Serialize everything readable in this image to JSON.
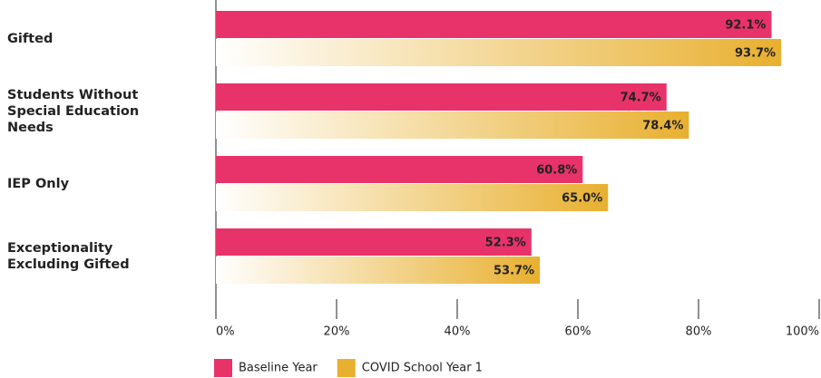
{
  "chart_data": {
    "type": "bar",
    "orientation": "horizontal",
    "categories": [
      "Gifted",
      "Students Without Special Education Needs",
      "IEP Only",
      "Exceptionality Excluding Gifted"
    ],
    "series": [
      {
        "name": "Baseline Year",
        "color": "#e8336a",
        "values": [
          92.1,
          74.7,
          60.8,
          52.3
        ],
        "value_labels": [
          "92.1%",
          "74.7%",
          "60.8%",
          "52.3%"
        ]
      },
      {
        "name": "COVID School Year 1",
        "color": "#e8b030",
        "gradient": true,
        "values": [
          93.7,
          78.4,
          65.0,
          53.7
        ],
        "value_labels": [
          "93.7%",
          "78.4%",
          "65.0%",
          "53.7%"
        ]
      }
    ],
    "xlim": [
      0,
      100
    ],
    "xticks": [
      {
        "value": 0,
        "label": "0%"
      },
      {
        "value": 20,
        "label": "20%"
      },
      {
        "value": 40,
        "label": "40%"
      },
      {
        "value": 60,
        "label": "60%"
      },
      {
        "value": 80,
        "label": "80%"
      },
      {
        "value": 100,
        "label": "100%"
      }
    ],
    "legend": "bottom-left"
  }
}
